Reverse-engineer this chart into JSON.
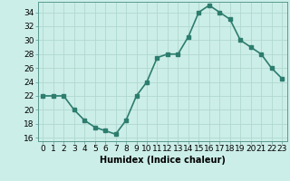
{
  "x": [
    0,
    1,
    2,
    3,
    4,
    5,
    6,
    7,
    8,
    9,
    10,
    11,
    12,
    13,
    14,
    15,
    16,
    17,
    18,
    19,
    20,
    21,
    22,
    23
  ],
  "y": [
    22,
    22,
    22,
    20,
    18.5,
    17.5,
    17,
    16.5,
    18.5,
    22,
    24,
    27.5,
    28,
    28,
    30.5,
    34,
    35,
    34,
    33,
    30,
    29,
    28,
    26,
    24.5
  ],
  "line_color": "#2d7d6e",
  "marker_color": "#2d7d6e",
  "bg_color": "#cceee8",
  "grid_color": "#b0d8d0",
  "xlabel": "Humidex (Indice chaleur)",
  "xlim": [
    -0.5,
    23.5
  ],
  "ylim": [
    15.5,
    35.5
  ],
  "yticks": [
    16,
    18,
    20,
    22,
    24,
    26,
    28,
    30,
    32,
    34
  ],
  "xtick_labels": [
    "0",
    "1",
    "2",
    "3",
    "4",
    "5",
    "6",
    "7",
    "8",
    "9",
    "10",
    "11",
    "12",
    "13",
    "14",
    "15",
    "16",
    "17",
    "18",
    "19",
    "20",
    "21",
    "22",
    "23"
  ],
  "xlabel_fontsize": 7,
  "tick_fontsize": 6.5,
  "linewidth": 1.2,
  "markersize": 2.5
}
